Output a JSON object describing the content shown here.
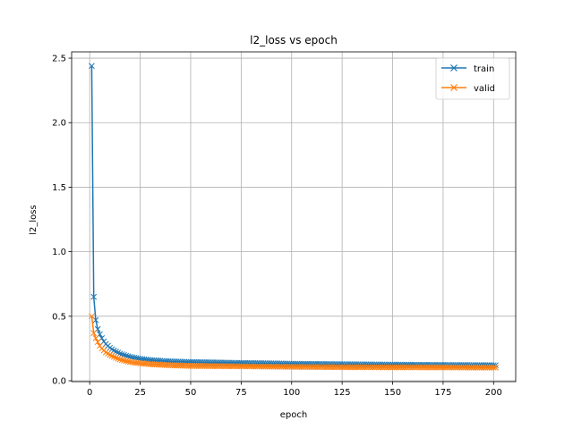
{
  "chart_data": {
    "type": "line",
    "title": "l2_loss vs epoch",
    "xlabel": "epoch",
    "ylabel": "l2_loss",
    "xlim": [
      -8.95,
      210.95
    ],
    "ylim": [
      -0.0068,
      2.5488
    ],
    "xticks": [
      0,
      25,
      50,
      75,
      100,
      125,
      150,
      175,
      200
    ],
    "yticks": [
      0.0,
      0.5,
      1.0,
      1.5,
      2.0,
      2.5
    ],
    "ytick_labels": [
      "0.0",
      "0.5",
      "1.0",
      "1.5",
      "2.0",
      "2.5"
    ],
    "grid": true,
    "legend_position": "top-right",
    "marker": "x",
    "x_first": 1,
    "x_last": 201,
    "series": [
      {
        "name": "train",
        "color": "#1f77b4",
        "keyframes": [
          [
            1,
            2.44
          ],
          [
            2,
            0.65
          ],
          [
            3,
            0.47
          ],
          [
            4,
            0.4
          ],
          [
            5,
            0.36
          ],
          [
            6,
            0.33
          ],
          [
            7,
            0.305
          ],
          [
            8,
            0.285
          ],
          [
            9,
            0.27
          ],
          [
            10,
            0.255
          ],
          [
            12,
            0.235
          ],
          [
            15,
            0.21
          ],
          [
            20,
            0.185
          ],
          [
            25,
            0.17
          ],
          [
            30,
            0.16
          ],
          [
            40,
            0.15
          ],
          [
            50,
            0.145
          ],
          [
            75,
            0.138
          ],
          [
            100,
            0.132
          ],
          [
            125,
            0.128
          ],
          [
            150,
            0.125
          ],
          [
            175,
            0.122
          ],
          [
            201,
            0.12
          ]
        ]
      },
      {
        "name": "valid",
        "color": "#ff7f0e",
        "keyframes": [
          [
            1,
            0.5
          ],
          [
            2,
            0.37
          ],
          [
            3,
            0.33
          ],
          [
            4,
            0.3
          ],
          [
            5,
            0.27
          ],
          [
            6,
            0.25
          ],
          [
            7,
            0.235
          ],
          [
            8,
            0.22
          ],
          [
            9,
            0.21
          ],
          [
            10,
            0.2
          ],
          [
            12,
            0.185
          ],
          [
            15,
            0.165
          ],
          [
            20,
            0.145
          ],
          [
            25,
            0.135
          ],
          [
            30,
            0.128
          ],
          [
            40,
            0.12
          ],
          [
            50,
            0.115
          ],
          [
            75,
            0.112
          ],
          [
            100,
            0.108
          ],
          [
            125,
            0.105
          ],
          [
            150,
            0.104
          ],
          [
            175,
            0.103
          ],
          [
            201,
            0.102
          ]
        ]
      }
    ]
  }
}
